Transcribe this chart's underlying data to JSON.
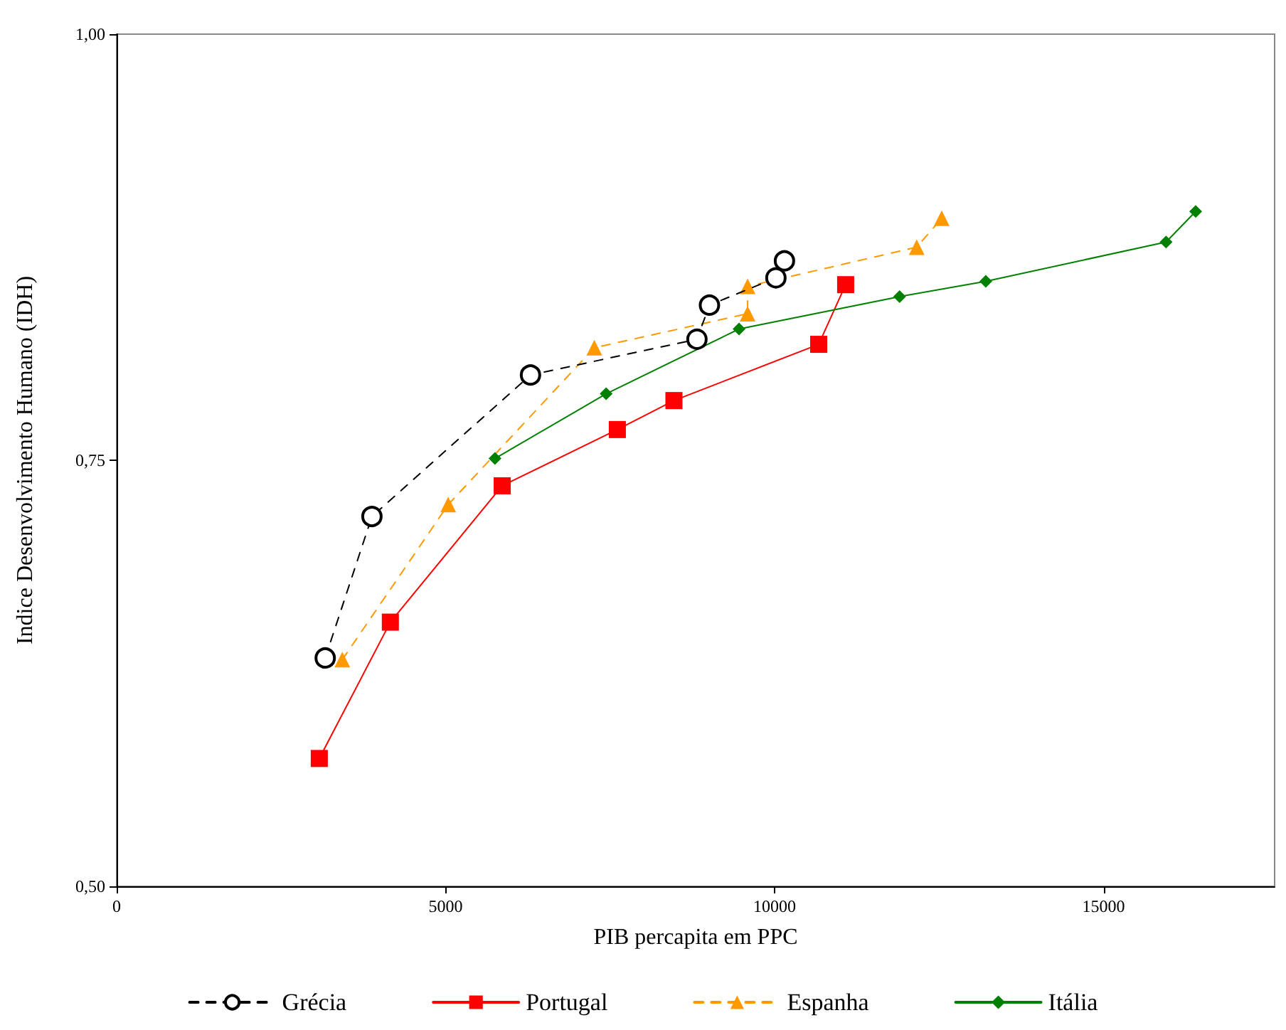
{
  "chart_data": {
    "type": "line",
    "xlabel": "PIB percapita em PPC",
    "ylabel": "Indice Desenvolvimento Humano (IDH)",
    "xlim": [
      0,
      17600
    ],
    "xticks": [
      0,
      5000,
      10000,
      15000
    ],
    "ylim": [
      0.5,
      1.0
    ],
    "yticks": [
      {
        "value": 0.5,
        "label": "0,50"
      },
      {
        "value": 0.75,
        "label": "0,75"
      },
      {
        "value": 1.0,
        "label": "1,00"
      }
    ],
    "grid": false,
    "legend": "bottom",
    "series": [
      {
        "name": "Grécia",
        "color": "#000000",
        "marker": "circle",
        "line_style": "dashed",
        "x": [
          3170,
          3880,
          6290,
          8820,
          9010,
          10020,
          10150
        ],
        "values": [
          0.634,
          0.717,
          0.8,
          0.821,
          0.841,
          0.857,
          0.867
        ]
      },
      {
        "name": "Portugal",
        "color": "#ff0000",
        "marker": "square",
        "line_style": "solid",
        "x": [
          3080,
          4160,
          5860,
          7610,
          8470,
          10670,
          11080
        ],
        "values": [
          0.575,
          0.655,
          0.735,
          0.768,
          0.785,
          0.818,
          0.853
        ]
      },
      {
        "name": "Espanha",
        "color": "#ff9900",
        "marker": "triangle",
        "line_style": "dashed",
        "x": [
          3430,
          5040,
          7260,
          9590,
          9590,
          12160,
          12540
        ],
        "values": [
          0.633,
          0.724,
          0.816,
          0.836,
          0.852,
          0.875,
          0.892
        ]
      },
      {
        "name": "Itália",
        "color": "#008000",
        "marker": "diamond",
        "line_style": "solid",
        "x": [
          5750,
          7440,
          9460,
          11900,
          13210,
          15950,
          16400
        ],
        "values": [
          0.751,
          0.789,
          0.827,
          0.846,
          0.855,
          0.878,
          0.896
        ]
      }
    ]
  }
}
